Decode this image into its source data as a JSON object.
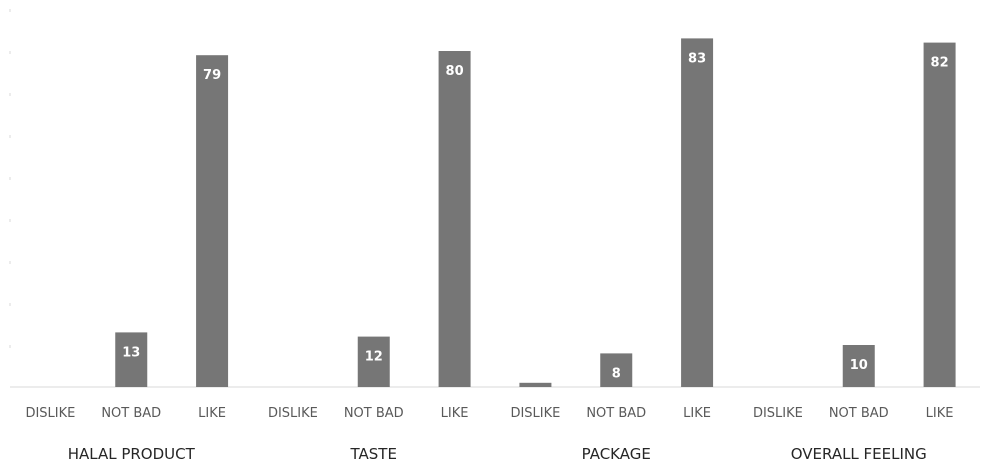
{
  "chart_data": {
    "type": "bar",
    "groups": [
      {
        "name": "HALAL PRODUCT",
        "categories": [
          "DISLIKE",
          "NOT BAD",
          "LIKE"
        ],
        "values": [
          0,
          13,
          79
        ]
      },
      {
        "name": "TASTE",
        "categories": [
          "DISLIKE",
          "NOT BAD",
          "LIKE"
        ],
        "values": [
          0,
          12,
          80
        ]
      },
      {
        "name": "PACKAGE",
        "categories": [
          "DISLIKE",
          "NOT BAD",
          "LIKE"
        ],
        "values": [
          1,
          8,
          83
        ]
      },
      {
        "name": "OVERALL FEELING",
        "categories": [
          "DISLIKE",
          "NOT BAD",
          "LIKE"
        ],
        "values": [
          0,
          10,
          82
        ]
      }
    ],
    "data_labels_shown": [
      [
        false,
        true,
        true
      ],
      [
        false,
        true,
        true
      ],
      [
        false,
        true,
        true
      ],
      [
        false,
        true,
        true
      ]
    ],
    "ylim": [
      0,
      90
    ],
    "grid": false,
    "legend": "none",
    "bar_color": "#767676",
    "label_color": "#ffffff"
  }
}
